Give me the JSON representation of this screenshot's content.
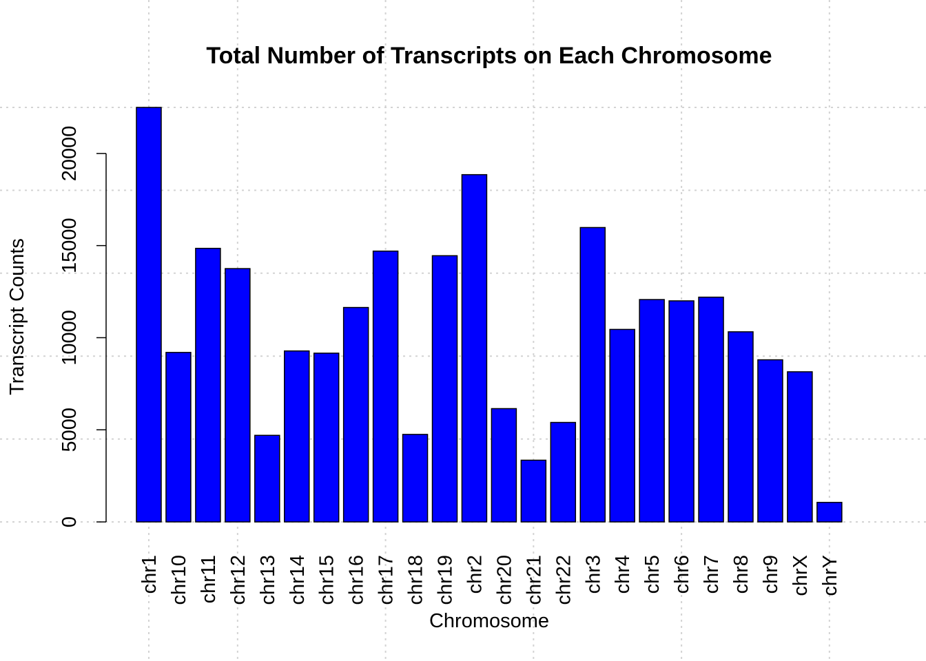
{
  "chart_data": {
    "type": "bar",
    "title": "Total Number of Transcripts on Each Chromosome",
    "xlabel": "Chromosome",
    "ylabel": "Transcript Counts",
    "categories": [
      "chr1",
      "chr10",
      "chr11",
      "chr12",
      "chr13",
      "chr14",
      "chr15",
      "chr16",
      "chr17",
      "chr18",
      "chr19",
      "chr2",
      "chr20",
      "chr21",
      "chr22",
      "chr3",
      "chr4",
      "chr5",
      "chr6",
      "chr7",
      "chr8",
      "chr9",
      "chrX",
      "chrY"
    ],
    "values": [
      22500,
      9200,
      14850,
      13750,
      4700,
      9280,
      9160,
      11640,
      14700,
      4750,
      14450,
      18850,
      6150,
      3350,
      5400,
      15980,
      10450,
      12070,
      12000,
      12200,
      10320,
      8800,
      8150,
      1060
    ],
    "yticks": [
      0,
      5000,
      10000,
      15000,
      20000
    ],
    "ytick_labels": [
      "0",
      "5000",
      "10000",
      "15000",
      "20000"
    ],
    "ylim": [
      0,
      22500
    ],
    "bar_color": "#0000ff",
    "bar_border_color": "#000000",
    "grid": true,
    "grid_color": "#d3d3d3",
    "grid_style": "dotted",
    "ygrid_values": [
      0,
      4500,
      9000,
      13500,
      18000,
      22500
    ],
    "xgrid_categories": [
      "chr1",
      "chr12",
      "chr17",
      "chr21",
      "chr6",
      "chrY"
    ],
    "x_tick_rotation": "vertical",
    "legend": "none"
  }
}
